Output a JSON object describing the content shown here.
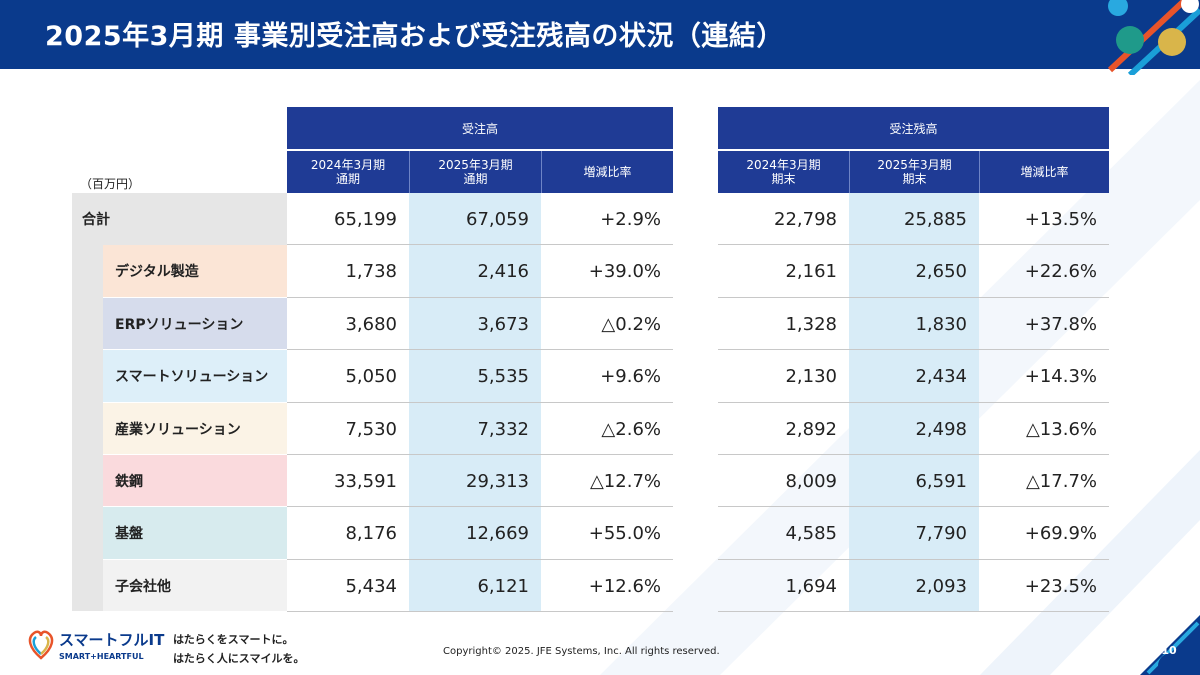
{
  "header": {
    "title": "2025年3月期 事業別受注高および受注残高の状況（連結）"
  },
  "unit_label": "（百万円）",
  "orders": {
    "group_label": "受注高",
    "columns": [
      "2024年3月期\n通期",
      "2025年3月期\n通期",
      "増減比率"
    ]
  },
  "backlog": {
    "group_label": "受注残高",
    "columns": [
      "2024年3月期\n期末",
      "2025年3月期\n期末",
      "増減比率"
    ]
  },
  "rows": [
    {
      "label": "合計",
      "color": "#e6e6e6",
      "orders": [
        "65,199",
        "67,059",
        "+2.9%"
      ],
      "backlog": [
        "22,798",
        "25,885",
        "+13.5%"
      ]
    },
    {
      "label": "デジタル製造",
      "color": "#fbe5d6",
      "orders": [
        "1,738",
        "2,416",
        "+39.0%"
      ],
      "backlog": [
        "2,161",
        "2,650",
        "+22.6%"
      ]
    },
    {
      "label": "ERPソリューション",
      "color": "#d6dcec",
      "orders": [
        "3,680",
        "3,673",
        "△0.2%"
      ],
      "backlog": [
        "1,328",
        "1,830",
        "+37.8%"
      ]
    },
    {
      "label": "スマートソリューション",
      "color": "#ddeff9",
      "orders": [
        "5,050",
        "5,535",
        "+9.6%"
      ],
      "backlog": [
        "2,130",
        "2,434",
        "+14.3%"
      ]
    },
    {
      "label": "産業ソリューション",
      "color": "#fbf3e6",
      "orders": [
        "7,530",
        "7,332",
        "△2.6%"
      ],
      "backlog": [
        "2,892",
        "2,498",
        "△13.6%"
      ]
    },
    {
      "label": "鉄鋼",
      "color": "#fadadd",
      "orders": [
        "33,591",
        "29,313",
        "△12.7%"
      ],
      "backlog": [
        "8,009",
        "6,591",
        "△17.7%"
      ]
    },
    {
      "label": "基盤",
      "color": "#d7ebee",
      "orders": [
        "8,176",
        "12,669",
        "+55.0%"
      ],
      "backlog": [
        "4,585",
        "7,790",
        "+69.9%"
      ]
    },
    {
      "label": "子会社他",
      "color": "#f2f2f2",
      "orders": [
        "5,434",
        "6,121",
        "+12.6%"
      ],
      "backlog": [
        "1,694",
        "2,093",
        "+23.5%"
      ]
    }
  ],
  "highlight_color": "#d8ecf7",
  "header_color": "#1f3b95",
  "footer": {
    "brand": "スマートフルIT",
    "brand_sub": "SMART+HEARTFUL",
    "tagline_1": "はたらくをスマートに。",
    "tagline_2": "はたらく人にスマイルを。",
    "copyright": "Copyright© 2025. JFE Systems, Inc. All rights reserved.",
    "page_number": "10"
  }
}
